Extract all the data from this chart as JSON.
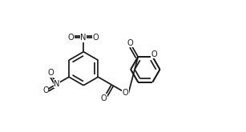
{
  "bg_color": "#ffffff",
  "line_color": "#1a1a1a",
  "lw": 1.25,
  "fs": 7.2,
  "dpi": 100,
  "fig_w": 3.07,
  "fig_h": 1.65,
  "xlim": [
    0.0,
    1.0
  ],
  "ylim": [
    0.05,
    0.82
  ]
}
